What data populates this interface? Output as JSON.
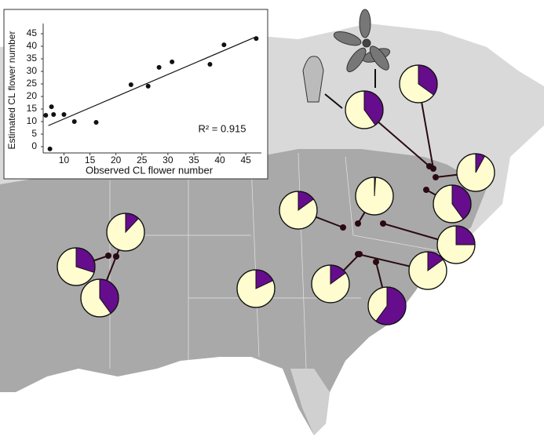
{
  "chart_data": [
    {
      "type": "scatter",
      "x_label": "Observed CL flower number",
      "y_label": "Estimated CL flower number",
      "annotation": "R² = 0.915",
      "x": [
        6.5,
        7.6,
        8.0,
        10,
        12.0,
        16.2,
        22.9,
        26.2,
        28.3,
        30.8,
        38.1,
        40.8,
        47.0,
        7.3
      ],
      "y": [
        12.5,
        15.9,
        12.8,
        12.8,
        10,
        9.7,
        24.7,
        24.1,
        31.6,
        33.8,
        32.8,
        40.6,
        43.1,
        -0.9
      ],
      "trend_line": {
        "x": [
          7,
          47
        ],
        "y": [
          8.4,
          43.8
        ]
      },
      "color": "#111111",
      "xlim": [
        6,
        48
      ],
      "xticks": [
        10,
        15,
        20,
        25,
        30,
        35,
        40,
        45
      ],
      "ylim": [
        -2.5,
        47.5
      ],
      "yticks": [
        0,
        5,
        10,
        15,
        20,
        25,
        30,
        35,
        40,
        45
      ]
    },
    {
      "type": "pie",
      "values": [
        40,
        35,
        8,
        40,
        25,
        1,
        15,
        15,
        15,
        60,
        18,
        12,
        30,
        40
      ],
      "color": "#650d8c",
      "background": "#fffdcf"
    }
  ]
}
